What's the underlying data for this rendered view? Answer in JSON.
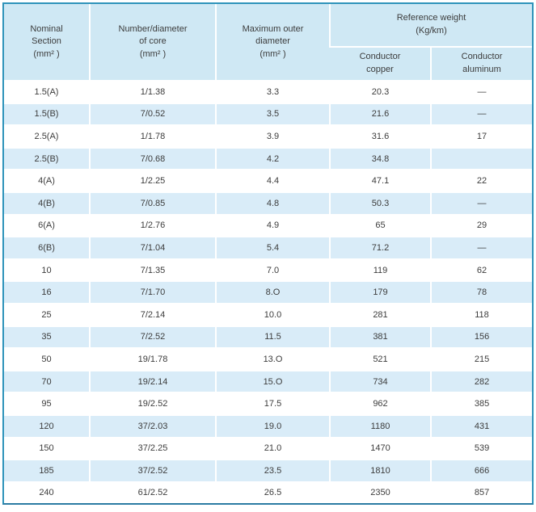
{
  "colors": {
    "frame_border": "#2e93ba",
    "frame_border_bottom": "#2b7ca3",
    "header_bg": "#cfe8f4",
    "stripe_row_bg": "#d9ecf8",
    "plain_row_bg": "#ffffff",
    "separator": "#ffffff",
    "text": "#3c3c3c"
  },
  "table": {
    "headers": {
      "nominal_section": {
        "line1": "Nominal",
        "line2": "Section",
        "unit": "(mm² )"
      },
      "core": {
        "line1": "Number/diameter",
        "line2": "of core",
        "unit": "(mm² )"
      },
      "max_outer": {
        "line1": "Maximum outer",
        "line2": "diameter",
        "unit": "(mm² )"
      },
      "reference_weight": {
        "line1": "Reference weight",
        "line2": "(Kg/km)"
      },
      "copper": {
        "line1": "Conductor",
        "line2": "copper"
      },
      "aluminum": {
        "line1": "Conductor",
        "line2": "aluminum"
      }
    },
    "rows": [
      [
        "1.5(A)",
        "1/1.38",
        "3.3",
        "20.3",
        "—"
      ],
      [
        "1.5(B)",
        "7/0.52",
        "3.5",
        "21.6",
        "—"
      ],
      [
        "2.5(A)",
        "1/1.78",
        "3.9",
        "31.6",
        "17"
      ],
      [
        "2.5(B)",
        "7/0.68",
        "4.2",
        "34.8",
        ""
      ],
      [
        "4(A)",
        "1/2.25",
        "4.4",
        "47.1",
        "22"
      ],
      [
        "4(B)",
        "7/0.85",
        "4.8",
        "50.3",
        "—"
      ],
      [
        "6(A)",
        "1/2.76",
        "4.9",
        "65",
        "29"
      ],
      [
        "6(B)",
        "7/1.04",
        "5.4",
        "71.2",
        "—"
      ],
      [
        "10",
        "7/1.35",
        "7.0",
        "119",
        "62"
      ],
      [
        "16",
        "7/1.70",
        "8.O",
        "179",
        "78"
      ],
      [
        "25",
        "7/2.14",
        "10.0",
        "281",
        "118"
      ],
      [
        "35",
        "7/2.52",
        "11.5",
        "381",
        "156"
      ],
      [
        "50",
        "19/1.78",
        "13.O",
        "521",
        "215"
      ],
      [
        "70",
        "19/2.14",
        "15.O",
        "734",
        "282"
      ],
      [
        "95",
        "19/2.52",
        "17.5",
        "962",
        "385"
      ],
      [
        "120",
        "37/2.03",
        "19.0",
        "1180",
        "431"
      ],
      [
        "150",
        "37/2.25",
        "21.0",
        "1470",
        "539"
      ],
      [
        "185",
        "37/2.52",
        "23.5",
        "1810",
        "666"
      ],
      [
        "240",
        "61/2.52",
        "26.5",
        "2350",
        "857"
      ]
    ]
  },
  "chart_data": {
    "type": "table",
    "title": "Cable specification table",
    "columns": [
      "Nominal Section (mm²)",
      "Number/diameter of core (mm²)",
      "Maximum outer diameter (mm²)",
      "Reference weight (Kg/km) — Conductor copper",
      "Reference weight (Kg/km) — Conductor aluminum"
    ],
    "rows": [
      [
        "1.5(A)",
        "1/1.38",
        "3.3",
        "20.3",
        "—"
      ],
      [
        "1.5(B)",
        "7/0.52",
        "3.5",
        "21.6",
        "—"
      ],
      [
        "2.5(A)",
        "1/1.78",
        "3.9",
        "31.6",
        "17"
      ],
      [
        "2.5(B)",
        "7/0.68",
        "4.2",
        "34.8",
        ""
      ],
      [
        "4(A)",
        "1/2.25",
        "4.4",
        "47.1",
        "22"
      ],
      [
        "4(B)",
        "7/0.85",
        "4.8",
        "50.3",
        "—"
      ],
      [
        "6(A)",
        "1/2.76",
        "4.9",
        "65",
        "29"
      ],
      [
        "6(B)",
        "7/1.04",
        "5.4",
        "71.2",
        "—"
      ],
      [
        "10",
        "7/1.35",
        "7.0",
        "119",
        "62"
      ],
      [
        "16",
        "7/1.70",
        "8.O",
        "179",
        "78"
      ],
      [
        "25",
        "7/2.14",
        "10.0",
        "281",
        "118"
      ],
      [
        "35",
        "7/2.52",
        "11.5",
        "381",
        "156"
      ],
      [
        "50",
        "19/1.78",
        "13.O",
        "521",
        "215"
      ],
      [
        "70",
        "19/2.14",
        "15.O",
        "734",
        "282"
      ],
      [
        "95",
        "19/2.52",
        "17.5",
        "962",
        "385"
      ],
      [
        "120",
        "37/2.03",
        "19.0",
        "1180",
        "431"
      ],
      [
        "150",
        "37/2.25",
        "21.0",
        "1470",
        "539"
      ],
      [
        "185",
        "37/2.52",
        "23.5",
        "1810",
        "666"
      ],
      [
        "240",
        "61/2.52",
        "26.5",
        "2350",
        "857"
      ]
    ]
  }
}
